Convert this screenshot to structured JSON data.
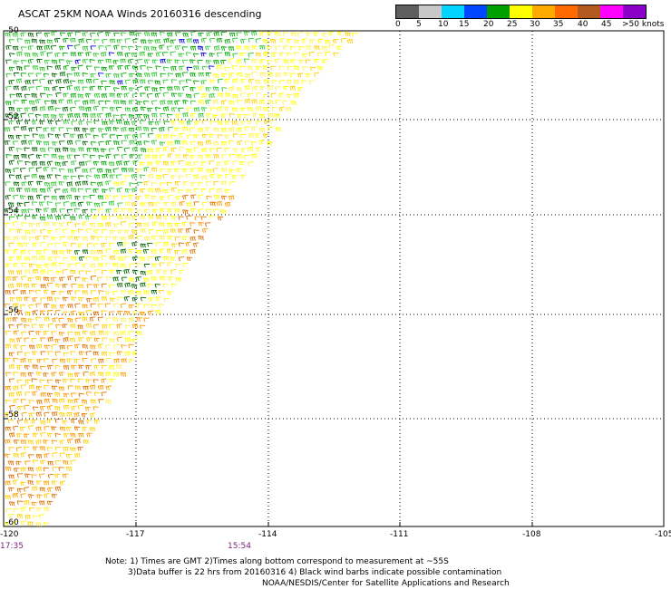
{
  "title": "ASCAT 25KM NOAA Winds 20160316 descending",
  "scale": {
    "labels": [
      "0",
      "5",
      "10",
      "15",
      "20",
      "25",
      "30",
      "35",
      "40",
      "45",
      ">50 knots"
    ],
    "colors": [
      "#5f5f5f",
      "#c8c8c8",
      "#00d4ff",
      "#0047ff",
      "#00a000",
      "#ffff00",
      "#ffaa00",
      "#ff6a00",
      "#b25a1f",
      "#ff00ff",
      "#8a00c8"
    ]
  },
  "grid": {
    "latitudes": [
      "-50",
      "-52",
      "-54",
      "-56",
      "-58",
      "-60"
    ],
    "longitudes": [
      "-120",
      "-117",
      "-114",
      "-111",
      "-108",
      "-105"
    ]
  },
  "times": [
    "17:35",
    "15:54"
  ],
  "notes": [
    "Note: 1) Times are GMT 2)Times along bottom correspond to measurement at ~55S",
    "3)Data buffer is 22 hrs from 20160316 4) Black wind barbs indicate possible contamination",
    "NOAA/NESDIS/Center for Satellite Applications and Research"
  ]
}
